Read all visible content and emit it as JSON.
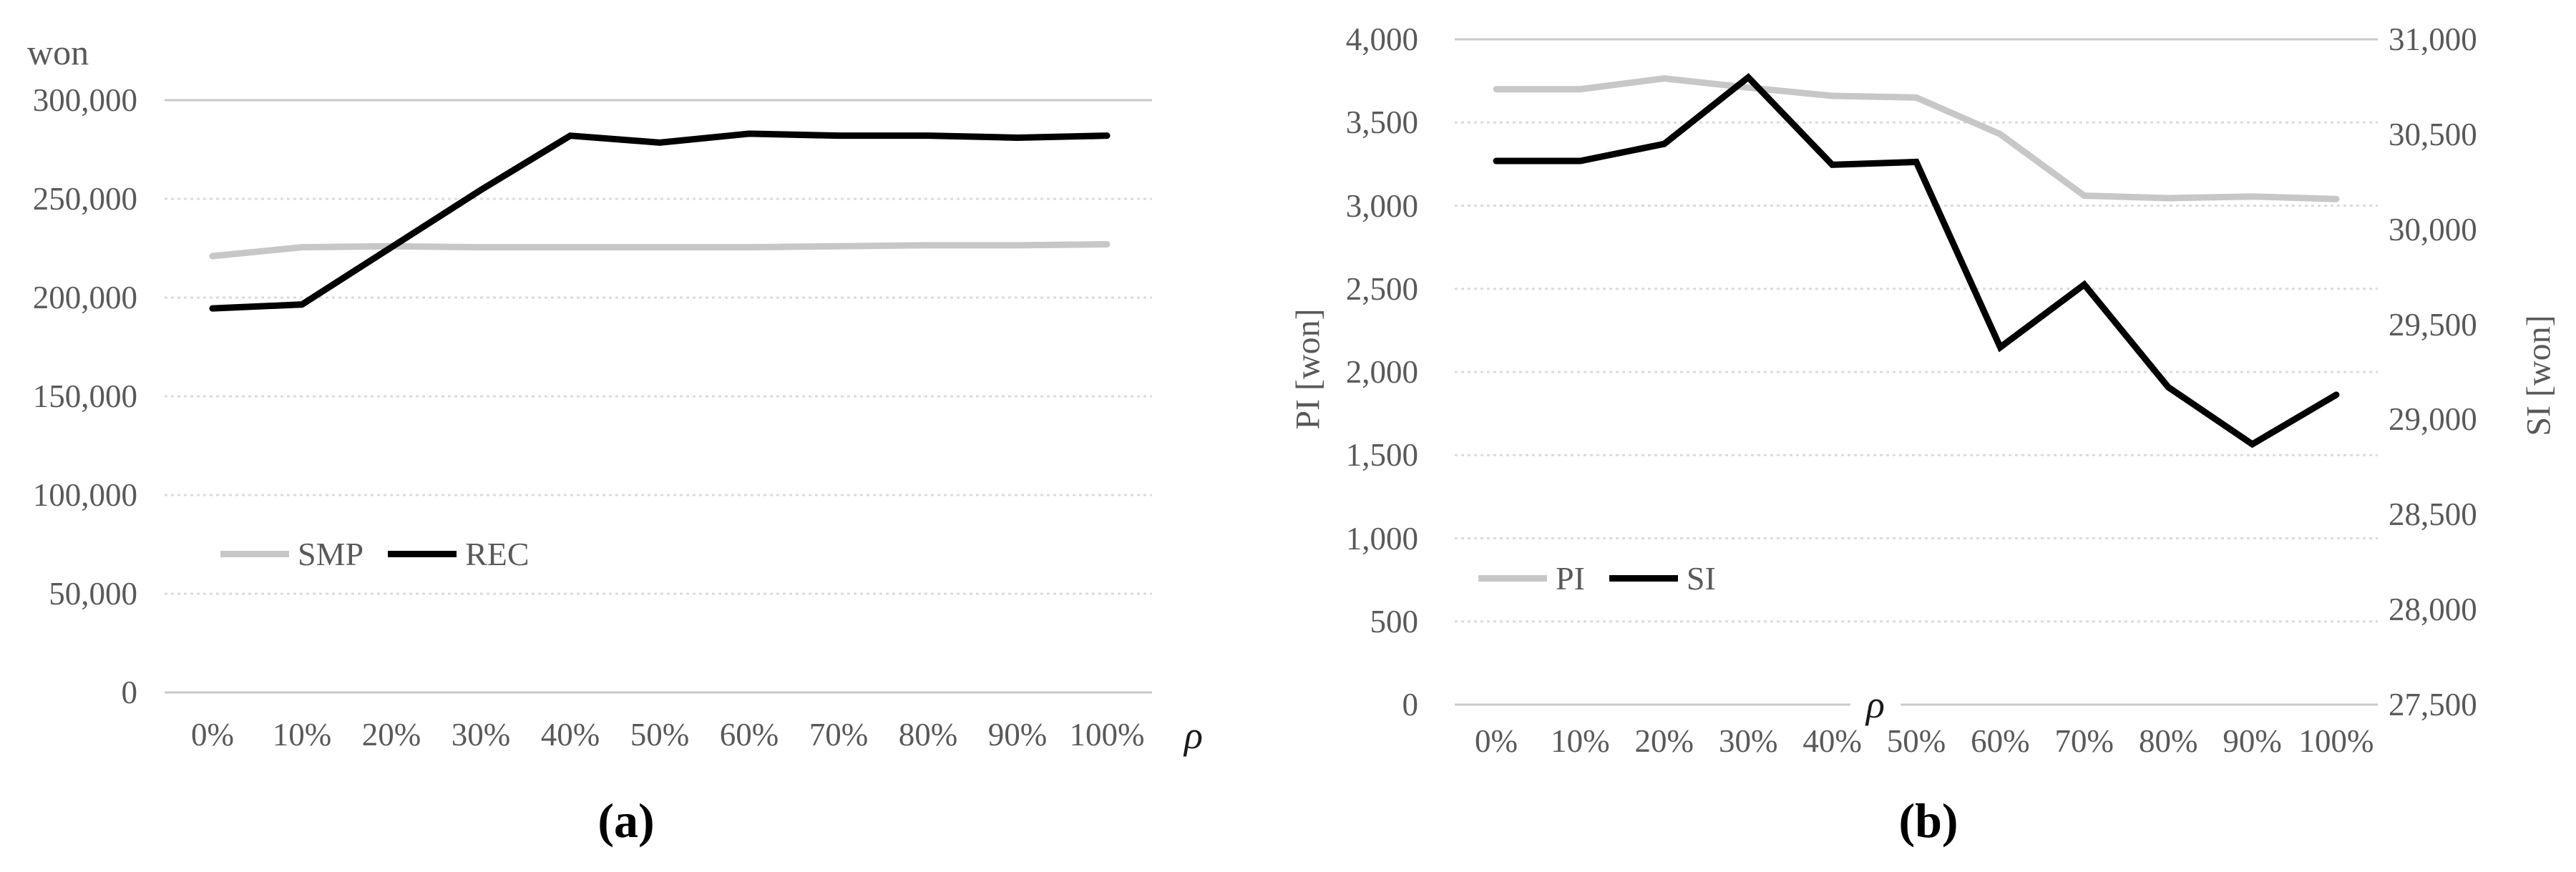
{
  "figure": {
    "background": "#ffffff",
    "text_color": "#595959",
    "gridline_color": "#dbdbdb",
    "frame_line_color": "#c9c9c9"
  },
  "chart_data": [
    {
      "id": "a",
      "type": "line",
      "unit_label": "won",
      "x_axis_symbol": "ρ",
      "caption": "(a)",
      "categories": [
        "0%",
        "10%",
        "20%",
        "30%",
        "40%",
        "50%",
        "60%",
        "70%",
        "80%",
        "90%",
        "100%"
      ],
      "y_axis": {
        "min": 0,
        "max": 300000,
        "step": 50000,
        "tick_labels": [
          "300,000",
          "250,000",
          "200,000",
          "150,000",
          "100,000",
          "50,000",
          "0"
        ]
      },
      "legend_position": "inside-left-bottom",
      "grid": true,
      "series": [
        {
          "name": "SMP",
          "color": "#c7c7c7",
          "axis": "left",
          "values": [
            221000,
            225500,
            226000,
            225500,
            225500,
            225500,
            225500,
            226000,
            226500,
            226500,
            227000
          ]
        },
        {
          "name": "REC",
          "color": "#000000",
          "axis": "left",
          "values": [
            194500,
            196500,
            225500,
            254500,
            282000,
            278500,
            283000,
            282000,
            282000,
            281000,
            282000
          ]
        }
      ]
    },
    {
      "id": "b",
      "type": "line",
      "x_axis_symbol": "ρ",
      "caption": "(b)",
      "categories": [
        "0%",
        "10%",
        "20%",
        "30%",
        "40%",
        "50%",
        "60%",
        "70%",
        "80%",
        "90%",
        "100%"
      ],
      "left_axis": {
        "title": "PI [won]",
        "min": 0,
        "max": 4000,
        "step": 500,
        "tick_labels": [
          "4,000",
          "3,500",
          "3,000",
          "2,500",
          "2,000",
          "1,500",
          "1,000",
          "500",
          "0"
        ]
      },
      "right_axis": {
        "title": "SI [won]",
        "min": 27500,
        "max": 31000,
        "step": 500,
        "tick_labels": [
          "31,000",
          "30,500",
          "30,000",
          "29,500",
          "29,000",
          "28,500",
          "28,000",
          "27,500"
        ]
      },
      "legend_position": "inside-left-bottom",
      "grid": true,
      "series": [
        {
          "name": "PI",
          "color": "#c7c7c7",
          "axis": "left",
          "values": [
            3700,
            3700,
            3765,
            3710,
            3660,
            3650,
            3430,
            3060,
            3045,
            3055,
            3040
          ]
        },
        {
          "name": "SI",
          "color": "#000000",
          "axis": "right",
          "values": [
            30360,
            30360,
            30450,
            30800,
            30340,
            30355,
            29380,
            29710,
            29170,
            28870,
            29130
          ]
        }
      ]
    }
  ]
}
